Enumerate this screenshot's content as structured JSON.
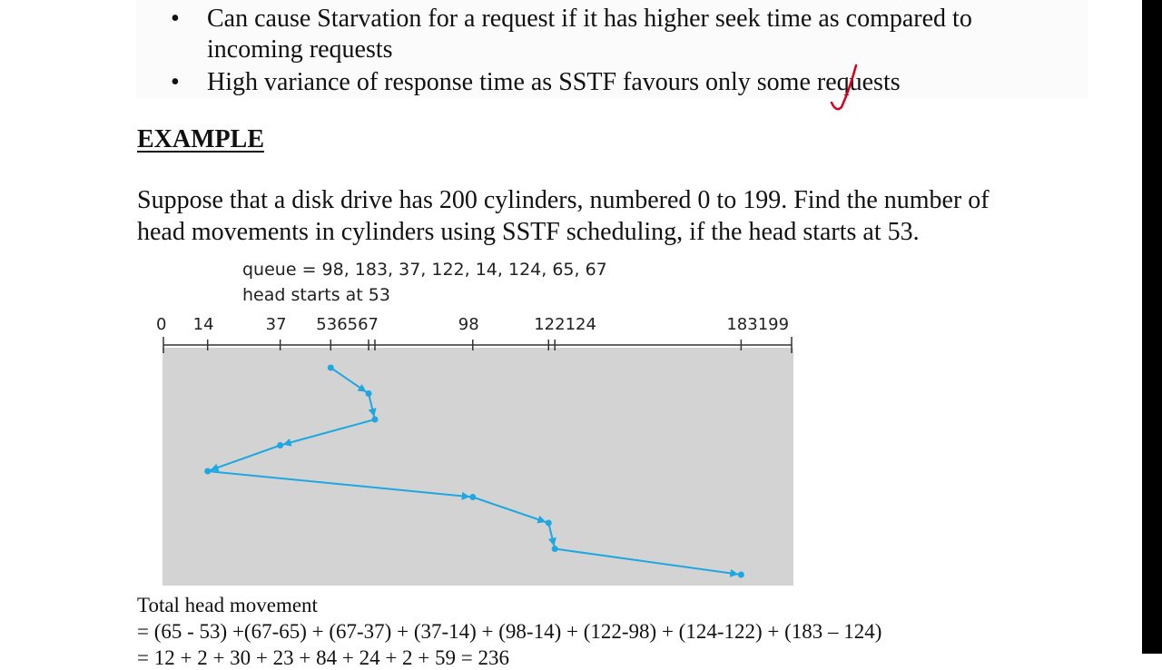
{
  "bullets": [
    {
      "line1": "Can cause Starvation for a request if it has higher seek time as compared to",
      "line2": "incoming requests"
    },
    {
      "line1": "High variance of response time as SSTF favours only some requests"
    }
  ],
  "heading": "EXAMPLE",
  "problem": {
    "line1": "Suppose that a disk drive has 200 cylinders, numbered 0 to 199.  Find the number of",
    "line2": "head movements in cylinders using SSTF scheduling, if the head starts at 53."
  },
  "diagram": {
    "queue_label": "queue = 98, 183, 37, 122, 14, 124, 65, 67",
    "head_label": "head starts at 53",
    "tick_labels": [
      "0",
      "14",
      "37",
      "536567",
      "98",
      "122124",
      "183199"
    ],
    "ticks": [
      0,
      14,
      37,
      53,
      65,
      67,
      98,
      122,
      124,
      183,
      199
    ],
    "path": [
      53,
      65,
      67,
      37,
      14,
      98,
      122,
      124,
      183
    ],
    "colors": {
      "line": "#1ea7e1",
      "background": "#d3d3d3",
      "axis": "#333333",
      "annotation": "#d9001b"
    }
  },
  "total": {
    "title": "Total head movement",
    "formula": "= (65 - 53) +(67-65) + (67-37) + (37-14) + (98-14) + (122-98) + (124-122) + (183 – 124)",
    "result": "= 12 + 2 + 30 + 23 + 84 + 24 + 2 + 59 = 236"
  }
}
